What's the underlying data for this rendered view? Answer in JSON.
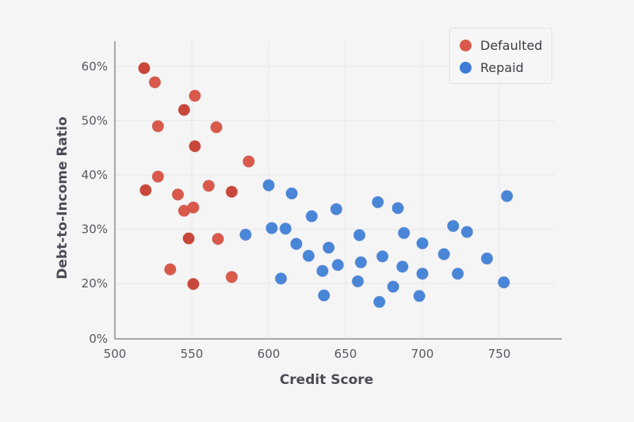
{
  "chart_data": {
    "type": "scatter",
    "title": "",
    "xlabel": "Credit Score",
    "ylabel": "Debt-to-Income Ratio",
    "xlim": [
      500,
      790
    ],
    "ylim": [
      0,
      65
    ],
    "xticks": [
      500,
      550,
      600,
      650,
      700,
      750
    ],
    "xtick_labels": [
      "500",
      "550",
      "600",
      "650",
      "700",
      "750"
    ],
    "yticks": [
      0,
      20,
      30,
      40,
      50,
      60
    ],
    "ytick_labels": [
      "0%",
      "20%",
      "30%",
      "40%",
      "50%",
      "60%"
    ],
    "grid": true,
    "legend_position": "top-right",
    "series": [
      {
        "name": "Defaulted",
        "color": "#d95a4b",
        "points": [
          {
            "x": 519,
            "y": 59.7
          },
          {
            "x": 526,
            "y": 57.1
          },
          {
            "x": 552,
            "y": 54.6
          },
          {
            "x": 545,
            "y": 52.0
          },
          {
            "x": 528,
            "y": 49.0
          },
          {
            "x": 566,
            "y": 48.8
          },
          {
            "x": 552,
            "y": 45.3
          },
          {
            "x": 587,
            "y": 42.5
          },
          {
            "x": 528,
            "y": 39.7
          },
          {
            "x": 520,
            "y": 37.2
          },
          {
            "x": 561,
            "y": 38.0
          },
          {
            "x": 541,
            "y": 36.4
          },
          {
            "x": 576,
            "y": 36.9
          },
          {
            "x": 545,
            "y": 33.4
          },
          {
            "x": 551,
            "y": 34.0
          },
          {
            "x": 548,
            "y": 28.3
          },
          {
            "x": 567,
            "y": 28.2
          },
          {
            "x": 536,
            "y": 22.6
          },
          {
            "x": 551,
            "y": 19.9
          },
          {
            "x": 576,
            "y": 21.2
          }
        ]
      },
      {
        "name": "Repaid",
        "color": "#4a86d8",
        "points": [
          {
            "x": 585,
            "y": 29.0
          },
          {
            "x": 600,
            "y": 38.1
          },
          {
            "x": 615,
            "y": 36.6
          },
          {
            "x": 628,
            "y": 32.4
          },
          {
            "x": 644,
            "y": 33.7
          },
          {
            "x": 602,
            "y": 30.2
          },
          {
            "x": 611,
            "y": 30.1
          },
          {
            "x": 618,
            "y": 27.3
          },
          {
            "x": 626,
            "y": 25.1
          },
          {
            "x": 639,
            "y": 26.6
          },
          {
            "x": 635,
            "y": 22.3
          },
          {
            "x": 645,
            "y": 23.4
          },
          {
            "x": 608,
            "y": 20.9
          },
          {
            "x": 636,
            "y": 17.8
          },
          {
            "x": 659,
            "y": 28.9
          },
          {
            "x": 660,
            "y": 23.9
          },
          {
            "x": 658,
            "y": 20.4
          },
          {
            "x": 671,
            "y": 35.0
          },
          {
            "x": 684,
            "y": 33.9
          },
          {
            "x": 688,
            "y": 29.3
          },
          {
            "x": 700,
            "y": 27.4
          },
          {
            "x": 674,
            "y": 25.0
          },
          {
            "x": 687,
            "y": 23.1
          },
          {
            "x": 700,
            "y": 21.8
          },
          {
            "x": 681,
            "y": 19.4
          },
          {
            "x": 672,
            "y": 16.6
          },
          {
            "x": 698,
            "y": 17.7
          },
          {
            "x": 720,
            "y": 30.6
          },
          {
            "x": 729,
            "y": 29.5
          },
          {
            "x": 714,
            "y": 25.4
          },
          {
            "x": 723,
            "y": 21.8
          },
          {
            "x": 742,
            "y": 24.6
          },
          {
            "x": 753,
            "y": 20.2
          },
          {
            "x": 755,
            "y": 36.1
          }
        ]
      }
    ]
  },
  "legend": {
    "items": [
      {
        "label": "Defaulted",
        "color": "#d95a4b"
      },
      {
        "label": "Repaid",
        "color": "#3f7bd6"
      }
    ]
  }
}
